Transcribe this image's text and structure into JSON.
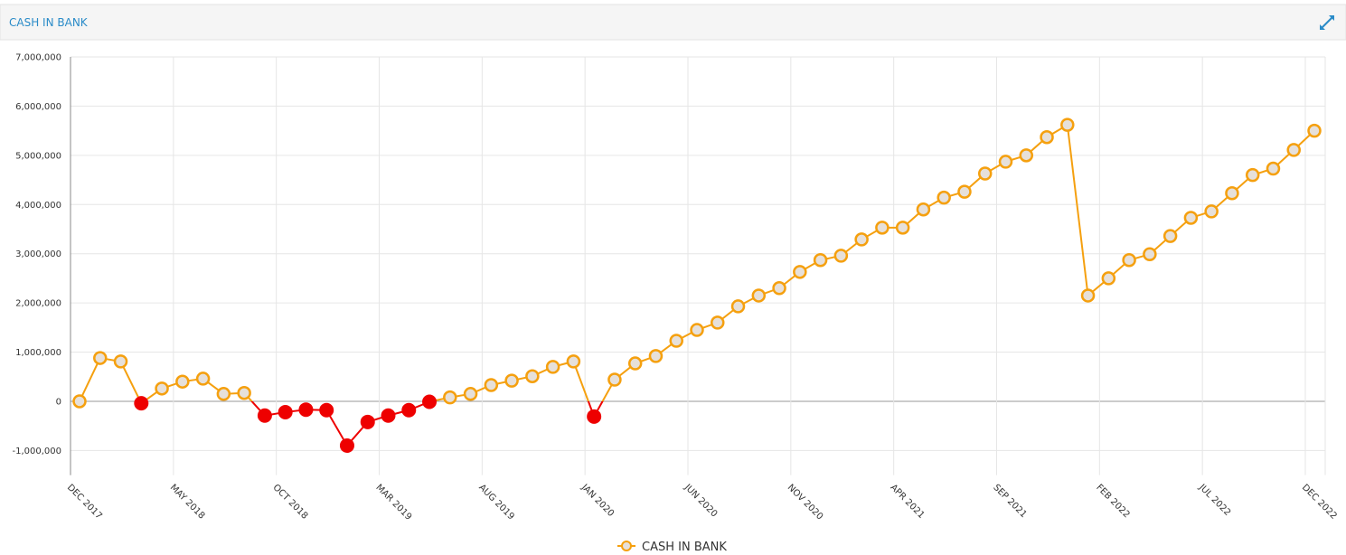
{
  "chart_data": {
    "type": "line",
    "title": "CASH IN BANK",
    "categories": [
      "DEC 2017",
      null,
      null,
      null,
      null,
      "MAY 2018",
      null,
      null,
      null,
      null,
      "OCT 2018",
      null,
      null,
      null,
      null,
      "MAR 2019",
      null,
      null,
      null,
      null,
      "AUG 2019",
      null,
      null,
      null,
      null,
      "JAN 2020",
      null,
      null,
      null,
      null,
      "JUN 2020",
      null,
      null,
      null,
      null,
      "NOV 2020",
      null,
      null,
      null,
      null,
      "APR 2021",
      null,
      null,
      null,
      null,
      "SEP 2021",
      null,
      null,
      null,
      null,
      "FEB 2022",
      null,
      null,
      null,
      null,
      "JUL 2022",
      null,
      null,
      null,
      null,
      "DEC 2022"
    ],
    "series": [
      {
        "name": "CASH IN BANK",
        "color": "#f5a00f",
        "negative_color": "#ee0000",
        "values": [
          0,
          880000,
          810000,
          -40000,
          260000,
          400000,
          460000,
          150000,
          170000,
          -290000,
          -220000,
          -170000,
          -180000,
          -900000,
          -420000,
          -290000,
          -180000,
          -10000,
          80000,
          150000,
          330000,
          420000,
          510000,
          700000,
          810000,
          -310000,
          440000,
          770000,
          920000,
          1230000,
          1450000,
          1600000,
          1930000,
          2150000,
          2300000,
          2630000,
          2870000,
          2960000,
          3290000,
          3530000,
          3530000,
          3900000,
          4140000,
          4260000,
          4630000,
          4870000,
          5000000,
          5370000,
          5620000,
          2150000,
          2500000,
          2870000,
          2990000,
          3360000,
          3730000,
          3860000,
          4230000,
          4600000,
          4730000,
          5110000,
          5500000
        ]
      }
    ],
    "ylim": [
      -1500000,
      7000000
    ],
    "yticks": [
      {
        "value": -1000000,
        "label": "-1,000,000"
      },
      0,
      {
        "value": 1000000,
        "label": "1,000,000"
      },
      {
        "value": 2000000,
        "label": "2,000,000"
      },
      {
        "value": 3000000,
        "label": "3,000,000"
      },
      {
        "value": 4000000,
        "label": "4,000,000"
      },
      {
        "value": 5000000,
        "label": "5,000,000"
      },
      {
        "value": 6000000,
        "label": "6,000,000"
      },
      {
        "value": 7000000,
        "label": "7,000,000"
      }
    ],
    "grid": true
  }
}
